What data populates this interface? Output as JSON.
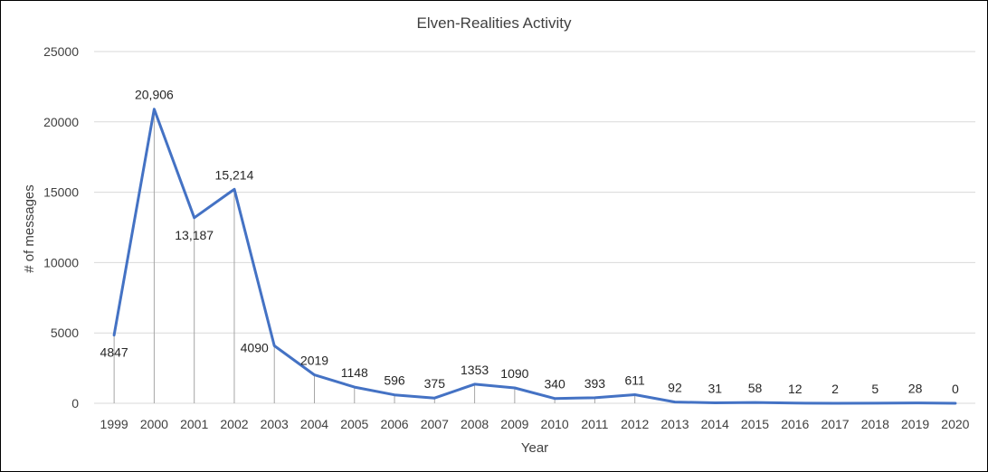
{
  "chart_data": {
    "type": "line",
    "title": "Elven-Realities Activity",
    "xlabel": "Year",
    "ylabel": "# of messages",
    "ylim": [
      0,
      25000
    ],
    "yticks": [
      "0",
      "5000",
      "10000",
      "15000",
      "20000",
      "25000"
    ],
    "grid": true,
    "legend": "none",
    "drop_lines": true,
    "color": "#4472c4",
    "categories": [
      "1999",
      "2000",
      "2001",
      "2002",
      "2003",
      "2004",
      "2005",
      "2006",
      "2007",
      "2008",
      "2009",
      "2010",
      "2011",
      "2012",
      "2013",
      "2014",
      "2015",
      "2016",
      "2017",
      "2018",
      "2019",
      "2020"
    ],
    "values": [
      4847,
      20906,
      13187,
      15214,
      4090,
      2019,
      1148,
      596,
      375,
      1353,
      1090,
      340,
      393,
      611,
      92,
      31,
      58,
      12,
      2,
      5,
      28,
      0
    ],
    "data_labels": [
      "4847",
      "20,906",
      "13,187",
      "15,214",
      "4090",
      "2019",
      "1148",
      "596",
      "375",
      "1353",
      "1090",
      "340",
      "393",
      "611",
      "92",
      "31",
      "58",
      "12",
      "2",
      "5",
      "28",
      "0"
    ]
  }
}
